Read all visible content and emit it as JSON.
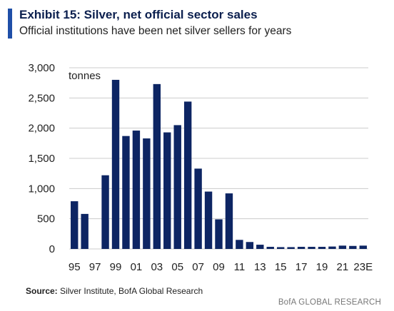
{
  "header": {
    "title": "Exhibit 15: Silver, net official sector sales",
    "subtitle": "Official institutions have been net silver sellers for years"
  },
  "colors": {
    "accent": "#1f4fa8",
    "bar": "#0d2563",
    "grid": "#cccccc"
  },
  "chart_data": {
    "type": "bar",
    "title": "Exhibit 15: Silver, net official sector sales",
    "subtitle": "Official institutions have been net silver sellers for years",
    "ylabel": "tonnes",
    "ylim": [
      0,
      3000
    ],
    "yticks": [
      "0",
      "500",
      "1,000",
      "1,500",
      "2,000",
      "2,500",
      "3,000"
    ],
    "ytick_values": [
      0,
      500,
      1000,
      1500,
      2000,
      2500,
      3000
    ],
    "grid": true,
    "categories": [
      "95",
      "96",
      "97",
      "98",
      "99",
      "00",
      "01",
      "02",
      "03",
      "04",
      "05",
      "06",
      "07",
      "08",
      "09",
      "10",
      "11",
      "12",
      "13",
      "14",
      "15",
      "16",
      "17",
      "18",
      "19",
      "20",
      "21",
      "22",
      "23E"
    ],
    "xtick_labels": [
      "95",
      "97",
      "99",
      "01",
      "03",
      "05",
      "07",
      "09",
      "11",
      "13",
      "15",
      "17",
      "19",
      "21",
      "23E"
    ],
    "values": [
      790,
      580,
      0,
      1220,
      2800,
      1870,
      1960,
      1830,
      2730,
      1930,
      2050,
      2440,
      1330,
      950,
      490,
      920,
      150,
      115,
      70,
      35,
      30,
      30,
      35,
      35,
      35,
      40,
      55,
      50,
      55
    ]
  },
  "footer": {
    "source_label": "Source:",
    "source_text": " Silver Institute, BofA Global Research",
    "brand": "BofA GLOBAL RESEARCH"
  }
}
